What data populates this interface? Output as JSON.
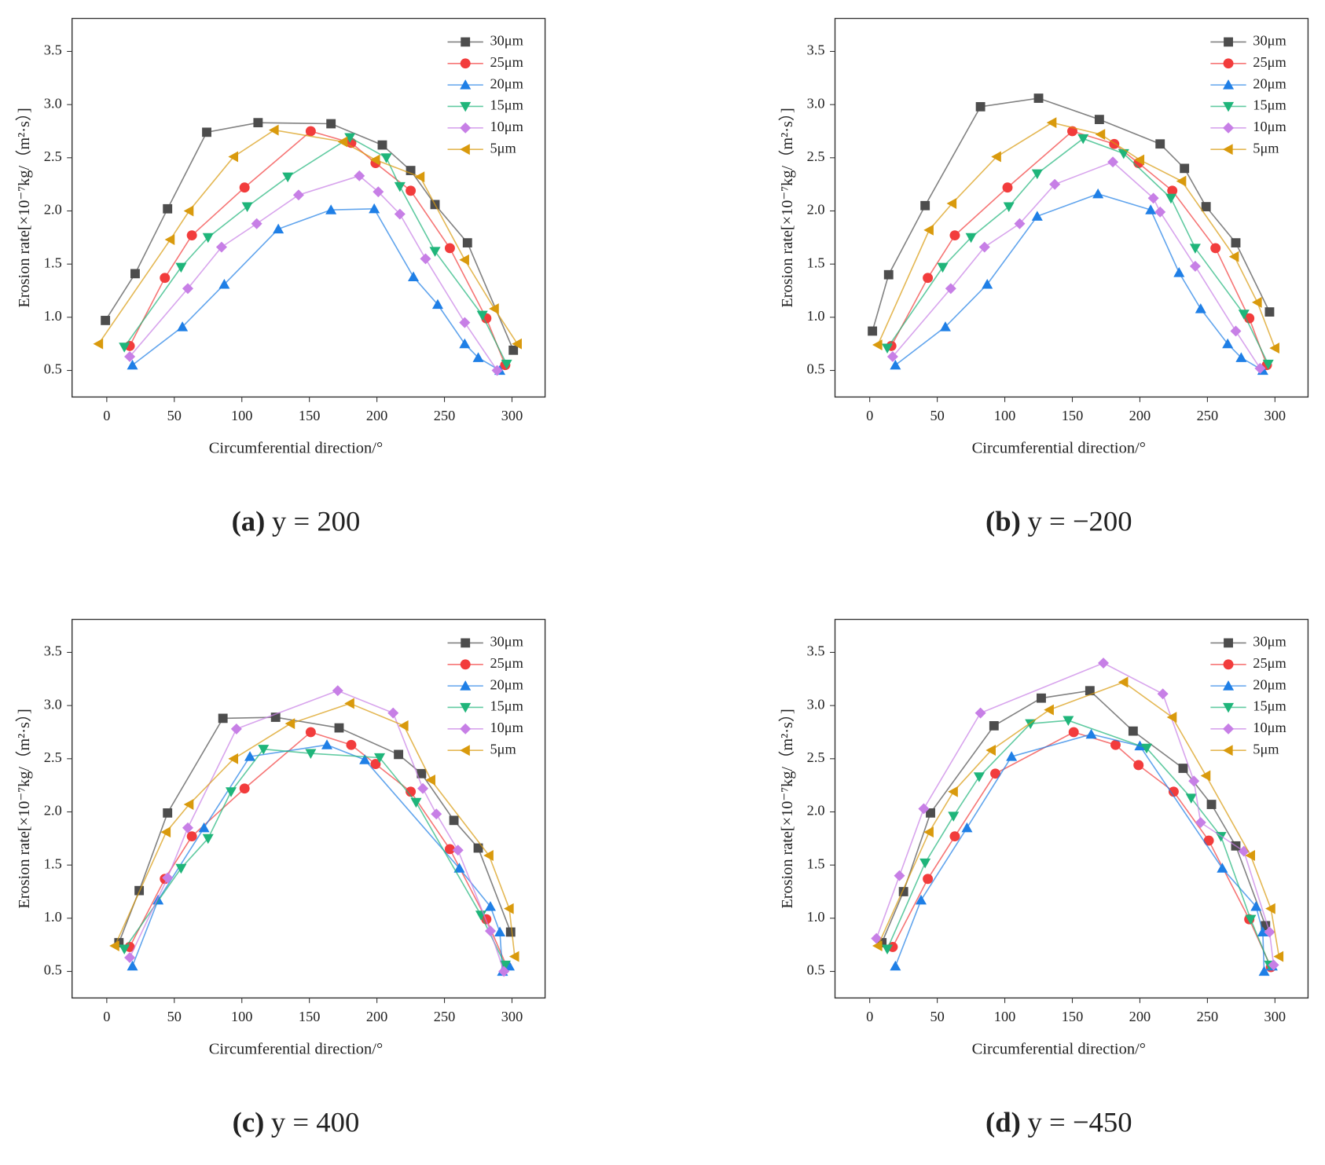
{
  "chart_data": [
    {
      "type": "line",
      "caption_label": "(a)",
      "caption": "y = 200",
      "xlabel": "Circumferential direction/°",
      "ylabel": "Erosion rate[×10⁻⁷kg/（m²·s）]",
      "xlim": [
        -25.7,
        324.5
      ],
      "ylim": [
        0.25,
        3.81
      ],
      "xticks": [
        0,
        50,
        100,
        150,
        200,
        250,
        300
      ],
      "yticks": [
        0.5,
        {
          "value": 1,
          "label": "1.0"
        },
        1.5,
        {
          "value": 2,
          "label": "2.0"
        },
        2.5,
        {
          "value": 3,
          "label": "3.0"
        },
        3.5
      ],
      "legend": "upper right",
      "series": [
        {
          "name": "30μm",
          "color": "#4d4d4d",
          "marker": "square",
          "x": [
            -1,
            21,
            45,
            74,
            112,
            166,
            204,
            225,
            243,
            267,
            301
          ],
          "values": [
            0.97,
            1.41,
            2.02,
            2.74,
            2.83,
            2.82,
            2.62,
            2.38,
            2.06,
            1.7,
            0.69
          ]
        },
        {
          "name": "25μm",
          "color": "#f23c3c",
          "marker": "circle",
          "x": [
            17,
            43,
            63,
            102,
            151,
            181,
            199,
            225,
            254,
            281,
            295
          ],
          "values": [
            0.73,
            1.37,
            1.77,
            2.22,
            2.75,
            2.64,
            2.45,
            2.19,
            1.65,
            0.99,
            0.55
          ]
        },
        {
          "name": "20μm",
          "color": "#1f7fe6",
          "marker": "triangle-up",
          "x": [
            19,
            56,
            87,
            127,
            166,
            198,
            227,
            245,
            265,
            275,
            291
          ],
          "values": [
            0.55,
            0.91,
            1.31,
            1.83,
            2.01,
            2.02,
            1.38,
            1.12,
            0.75,
            0.62,
            0.5
          ]
        },
        {
          "name": "15μm",
          "color": "#1fb57a",
          "marker": "triangle-down",
          "x": [
            13,
            55,
            75,
            104,
            134,
            180,
            207,
            217,
            243,
            278,
            296
          ],
          "values": [
            0.72,
            1.47,
            1.75,
            2.04,
            2.32,
            2.69,
            2.5,
            2.23,
            1.62,
            1.02,
            0.56
          ]
        },
        {
          "name": "10μm",
          "color": "#c77fe6",
          "marker": "diamond",
          "x": [
            17,
            60,
            85,
            111,
            142,
            187,
            201,
            217,
            236,
            265,
            289
          ],
          "values": [
            0.63,
            1.27,
            1.66,
            1.88,
            2.15,
            2.33,
            2.18,
            1.97,
            1.55,
            0.95,
            0.5
          ]
        },
        {
          "name": "5μm",
          "color": "#d99a0d",
          "marker": "triangle-left",
          "x": [
            -6,
            47,
            61,
            94,
            124,
            175,
            199,
            232,
            265,
            287,
            304
          ],
          "values": [
            0.75,
            1.73,
            2,
            2.51,
            2.76,
            2.65,
            2.48,
            2.32,
            1.54,
            1.08,
            0.75
          ]
        }
      ]
    },
    {
      "type": "line",
      "caption_label": "(b)",
      "caption": "y = −200",
      "xlabel": "Circumferential direction/°",
      "ylabel": "Erosion rate[×10⁻⁷kg/（m²·s）]",
      "xlim": [
        -25.7,
        324.5
      ],
      "ylim": [
        0.25,
        3.81
      ],
      "xticks": [
        0,
        50,
        100,
        150,
        200,
        250,
        300
      ],
      "yticks": [
        0.5,
        {
          "value": 1,
          "label": "1.0"
        },
        1.5,
        {
          "value": 2,
          "label": "2.0"
        },
        2.5,
        {
          "value": 3,
          "label": "3.0"
        },
        3.5
      ],
      "legend": "upper right",
      "series": [
        {
          "name": "30μm",
          "color": "#4d4d4d",
          "marker": "square",
          "x": [
            2,
            14,
            41,
            82,
            125,
            170,
            215,
            233,
            249,
            271,
            296
          ],
          "values": [
            0.87,
            1.4,
            2.05,
            2.98,
            3.06,
            2.86,
            2.63,
            2.4,
            2.04,
            1.7,
            1.05
          ]
        },
        {
          "name": "25μm",
          "color": "#f23c3c",
          "marker": "circle",
          "x": [
            16,
            43,
            63,
            102,
            150,
            181,
            199,
            224,
            256,
            281,
            294
          ],
          "values": [
            0.73,
            1.37,
            1.77,
            2.22,
            2.75,
            2.63,
            2.45,
            2.19,
            1.65,
            0.99,
            0.55
          ]
        },
        {
          "name": "20μm",
          "color": "#1f7fe6",
          "marker": "triangle-up",
          "x": [
            19,
            56,
            87,
            124,
            169,
            208,
            229,
            245,
            265,
            275,
            291
          ],
          "values": [
            0.55,
            0.91,
            1.31,
            1.95,
            2.16,
            2.01,
            1.42,
            1.08,
            0.75,
            0.62,
            0.5
          ]
        },
        {
          "name": "15μm",
          "color": "#1fb57a",
          "marker": "triangle-down",
          "x": [
            13,
            54,
            75,
            103,
            124,
            158,
            188,
            223,
            241,
            277,
            295
          ],
          "values": [
            0.71,
            1.47,
            1.75,
            2.04,
            2.35,
            2.68,
            2.54,
            2.12,
            1.65,
            1.03,
            0.56
          ]
        },
        {
          "name": "10μm",
          "color": "#c77fe6",
          "marker": "diamond",
          "x": [
            17,
            60,
            85,
            111,
            137,
            180,
            210,
            215,
            241,
            271,
            289
          ],
          "values": [
            0.63,
            1.27,
            1.66,
            1.88,
            2.25,
            2.46,
            2.12,
            1.99,
            1.48,
            0.87,
            0.52
          ]
        },
        {
          "name": "5μm",
          "color": "#d99a0d",
          "marker": "triangle-left",
          "x": [
            6,
            44,
            61,
            94,
            135,
            171,
            200,
            231,
            270,
            287,
            300
          ],
          "values": [
            0.74,
            1.82,
            2.07,
            2.51,
            2.83,
            2.72,
            2.48,
            2.28,
            1.57,
            1.14,
            0.71
          ]
        }
      ]
    },
    {
      "type": "line",
      "caption_label": "(c)",
      "caption": "y = 400",
      "xlabel": "Circumferential direction/°",
      "ylabel": "Erosion rate[×10⁻⁷kg/（m²·s）]",
      "xlim": [
        -25.7,
        324.5
      ],
      "ylim": [
        0.25,
        3.81
      ],
      "xticks": [
        0,
        50,
        100,
        150,
        200,
        250,
        300
      ],
      "yticks": [
        0.5,
        {
          "value": 1,
          "label": "1.0"
        },
        1.5,
        {
          "value": 2,
          "label": "2.0"
        },
        2.5,
        {
          "value": 3,
          "label": "3.0"
        },
        3.5
      ],
      "legend": "upper right",
      "series": [
        {
          "name": "30μm",
          "color": "#4d4d4d",
          "marker": "square",
          "x": [
            9,
            24,
            45,
            86,
            125,
            172,
            216,
            233,
            257,
            275,
            299
          ],
          "values": [
            0.77,
            1.26,
            1.99,
            2.88,
            2.89,
            2.79,
            2.54,
            2.36,
            1.92,
            1.66,
            0.87
          ]
        },
        {
          "name": "25μm",
          "color": "#f23c3c",
          "marker": "circle",
          "x": [
            17,
            43,
            63,
            102,
            151,
            181,
            199,
            225,
            254,
            281,
            296
          ],
          "values": [
            0.73,
            1.37,
            1.77,
            2.22,
            2.75,
            2.63,
            2.45,
            2.19,
            1.65,
            0.99,
            0.55
          ]
        },
        {
          "name": "20μm",
          "color": "#1f7fe6",
          "marker": "triangle-up",
          "x": [
            19,
            38,
            72,
            106,
            163,
            191,
            261,
            284,
            291,
            293,
            298
          ],
          "values": [
            0.55,
            1.17,
            1.85,
            2.52,
            2.63,
            2.49,
            1.47,
            1.11,
            0.87,
            0.5,
            0.55
          ]
        },
        {
          "name": "15μm",
          "color": "#1fb57a",
          "marker": "triangle-down",
          "x": [
            13,
            55,
            75,
            92,
            116,
            151,
            202,
            229,
            277,
            295
          ],
          "values": [
            0.71,
            1.47,
            1.75,
            2.19,
            2.59,
            2.55,
            2.51,
            2.09,
            1.03,
            0.56
          ]
        },
        {
          "name": "10μm",
          "color": "#c77fe6",
          "marker": "diamond",
          "x": [
            17,
            45,
            60,
            96,
            171,
            212,
            234,
            244,
            260,
            284,
            294
          ],
          "values": [
            0.63,
            1.38,
            1.85,
            2.78,
            3.14,
            2.93,
            2.22,
            1.98,
            1.64,
            0.88,
            0.5
          ]
        },
        {
          "name": "5μm",
          "color": "#d99a0d",
          "marker": "triangle-left",
          "x": [
            6,
            44,
            61,
            94,
            136,
            180,
            220,
            240,
            283,
            298,
            302
          ],
          "values": [
            0.74,
            1.81,
            2.07,
            2.5,
            2.83,
            3.02,
            2.81,
            2.3,
            1.59,
            1.09,
            0.64
          ]
        }
      ]
    },
    {
      "type": "line",
      "caption_label": "(d)",
      "caption": "y = −450",
      "xlabel": "Circumferential direction/°",
      "ylabel": "Erosion rate[×10⁻⁷kg/（m²·s）]",
      "xlim": [
        -25.7,
        324.5
      ],
      "ylim": [
        0.25,
        3.81
      ],
      "xticks": [
        0,
        50,
        100,
        150,
        200,
        250,
        300
      ],
      "yticks": [
        0.5,
        {
          "value": 1,
          "label": "1.0"
        },
        1.5,
        {
          "value": 2,
          "label": "2.0"
        },
        2.5,
        {
          "value": 3,
          "label": "3.0"
        },
        3.5
      ],
      "legend": "upper right",
      "series": [
        {
          "name": "30μm",
          "color": "#4d4d4d",
          "marker": "square",
          "x": [
            9,
            25,
            45,
            92,
            127,
            163,
            195,
            232,
            253,
            271,
            293
          ],
          "values": [
            0.77,
            1.25,
            1.99,
            2.81,
            3.07,
            3.14,
            2.76,
            2.41,
            2.07,
            1.68,
            0.93
          ]
        },
        {
          "name": "25μm",
          "color": "#f23c3c",
          "marker": "circle",
          "x": [
            17,
            43,
            63,
            93,
            151,
            182,
            199,
            225,
            251,
            281,
            297
          ],
          "values": [
            0.73,
            1.37,
            1.77,
            2.36,
            2.75,
            2.63,
            2.44,
            2.19,
            1.73,
            0.99,
            0.54
          ]
        },
        {
          "name": "20μm",
          "color": "#1f7fe6",
          "marker": "triangle-up",
          "x": [
            19,
            38,
            72,
            105,
            164,
            200,
            261,
            286,
            291,
            292,
            298
          ],
          "values": [
            0.55,
            1.17,
            1.85,
            2.52,
            2.73,
            2.62,
            1.47,
            1.11,
            0.87,
            0.5,
            0.55
          ]
        },
        {
          "name": "15μm",
          "color": "#1fb57a",
          "marker": "triangle-down",
          "x": [
            13,
            41,
            62,
            81,
            119,
            147,
            205,
            238,
            260,
            282,
            296
          ],
          "values": [
            0.71,
            1.52,
            1.96,
            2.33,
            2.83,
            2.86,
            2.6,
            2.13,
            1.77,
            0.99,
            0.56
          ]
        },
        {
          "name": "10μm",
          "color": "#c77fe6",
          "marker": "diamond",
          "x": [
            5,
            22,
            40,
            82,
            173,
            217,
            240,
            245,
            277,
            296,
            299
          ],
          "values": [
            0.81,
            1.4,
            2.03,
            2.93,
            3.4,
            3.11,
            2.29,
            1.9,
            1.63,
            0.87,
            0.56
          ]
        },
        {
          "name": "5μm",
          "color": "#d99a0d",
          "marker": "triangle-left",
          "x": [
            6,
            44,
            62,
            90,
            133,
            188,
            224,
            249,
            282,
            297,
            303
          ],
          "values": [
            0.74,
            1.81,
            2.19,
            2.58,
            2.96,
            3.22,
            2.89,
            2.34,
            1.59,
            1.09,
            0.64
          ]
        }
      ]
    }
  ]
}
